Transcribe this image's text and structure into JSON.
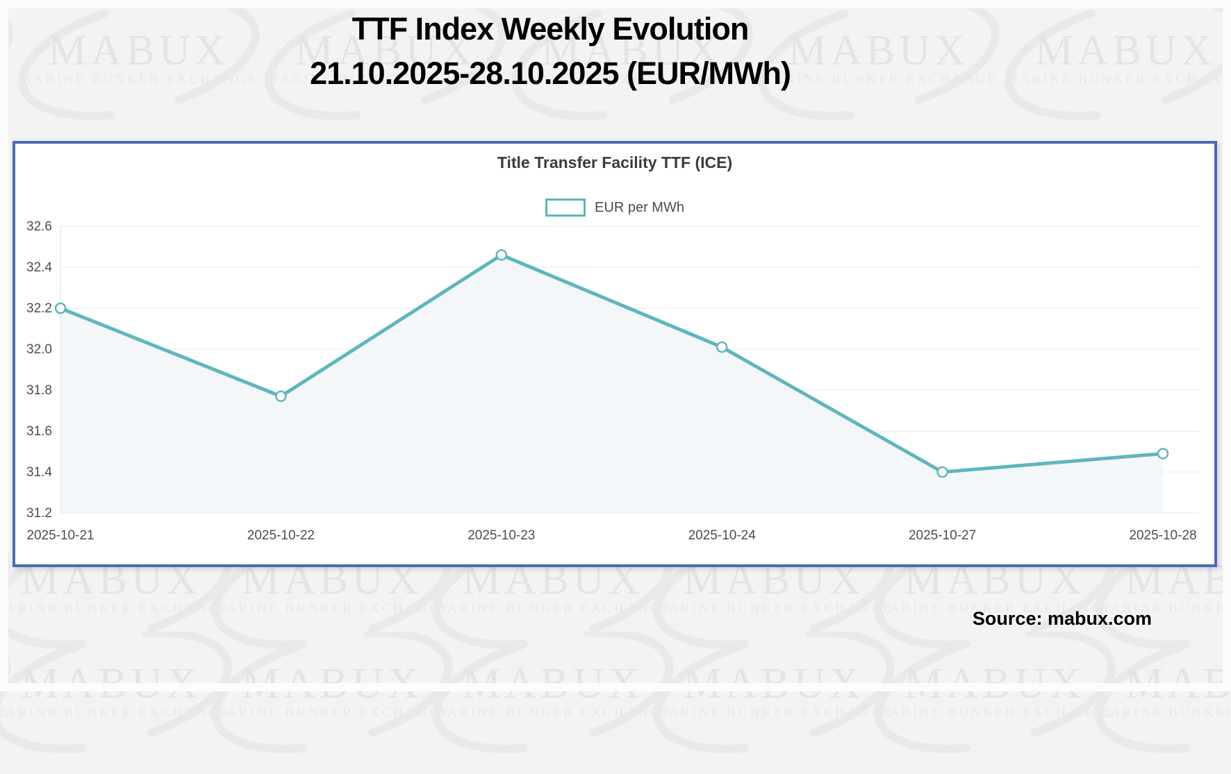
{
  "page": {
    "main_title_line1": "TTF Index Weekly Evolution",
    "main_title_line2": "21.10.2025-28.10.2025 (EUR/MWh)",
    "source_text": "Source: mabux.com",
    "watermark": {
      "brand": "MABUX",
      "tagline": "MARINE BUNKER EXCHANGE"
    }
  },
  "chart_data": {
    "type": "line",
    "title": "Title Transfer Facility TTF (ICE)",
    "categories": [
      "2025-10-21",
      "2025-10-22",
      "2025-10-23",
      "2025-10-24",
      "2025-10-27",
      "2025-10-28"
    ],
    "series": [
      {
        "name": "EUR per MWh",
        "values": [
          32.2,
          31.77,
          32.46,
          32.01,
          31.4,
          31.49
        ]
      }
    ],
    "xlabel": "",
    "ylabel": "",
    "ylim": [
      31.2,
      32.6
    ],
    "ytick_step": 0.2,
    "grid": true,
    "legend_position": "top-center",
    "colors": {
      "line": "#5eb6bd",
      "marker_fill": "#ffffff",
      "area_fill": "#f4f7f9",
      "grid": "#e7e7e7",
      "axis_line": "#e0e0e0",
      "tick_label": "#4c4c4c",
      "title": "#3c3c3c",
      "panel_border": "#4a6ab4"
    }
  }
}
